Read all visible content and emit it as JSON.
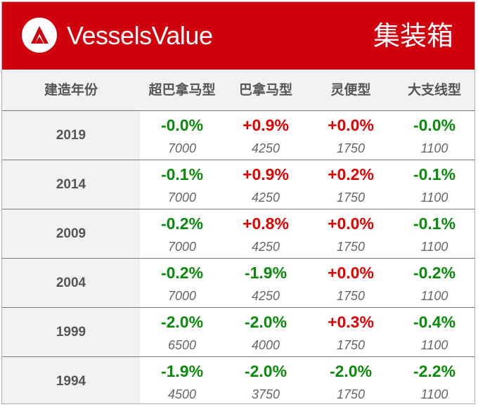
{
  "header": {
    "brand": "VesselsValue",
    "section_title": "集装箱",
    "background_color": "#d0000d",
    "logo_icon": "vesselsvalue-logo-icon"
  },
  "columns": [
    "建造年份",
    "超巴拿马型",
    "巴拿马型",
    "灵便型",
    "大支线型"
  ],
  "colors": {
    "positive": "#e00000",
    "negative": "#0a8a0a"
  },
  "rows": [
    {
      "year": "2019",
      "cells": [
        {
          "pct": "-0.0%",
          "value": "7000"
        },
        {
          "pct": "+0.9%",
          "value": "4250"
        },
        {
          "pct": "+0.0%",
          "value": "1750"
        },
        {
          "pct": "-0.0%",
          "value": "1100"
        }
      ]
    },
    {
      "year": "2014",
      "cells": [
        {
          "pct": "-0.1%",
          "value": "7000"
        },
        {
          "pct": "+0.9%",
          "value": "4250"
        },
        {
          "pct": "+0.2%",
          "value": "1750"
        },
        {
          "pct": "-0.1%",
          "value": "1100"
        }
      ]
    },
    {
      "year": "2009",
      "cells": [
        {
          "pct": "-0.2%",
          "value": "7000"
        },
        {
          "pct": "+0.8%",
          "value": "4250"
        },
        {
          "pct": "+0.0%",
          "value": "1750"
        },
        {
          "pct": "-0.1%",
          "value": "1100"
        }
      ]
    },
    {
      "year": "2004",
      "cells": [
        {
          "pct": "-0.2%",
          "value": "7000"
        },
        {
          "pct": "-1.9%",
          "value": "4250"
        },
        {
          "pct": "+0.0%",
          "value": "1750"
        },
        {
          "pct": "-0.2%",
          "value": "1100"
        }
      ]
    },
    {
      "year": "1999",
      "cells": [
        {
          "pct": "-2.0%",
          "value": "6500"
        },
        {
          "pct": "-2.0%",
          "value": "4000"
        },
        {
          "pct": "+0.3%",
          "value": "1750"
        },
        {
          "pct": "-0.4%",
          "value": "1100"
        }
      ]
    },
    {
      "year": "1994",
      "cells": [
        {
          "pct": "-1.9%",
          "value": "4500"
        },
        {
          "pct": "-2.0%",
          "value": "3750"
        },
        {
          "pct": "-2.0%",
          "value": "1750"
        },
        {
          "pct": "-2.2%",
          "value": "1100"
        }
      ]
    }
  ]
}
